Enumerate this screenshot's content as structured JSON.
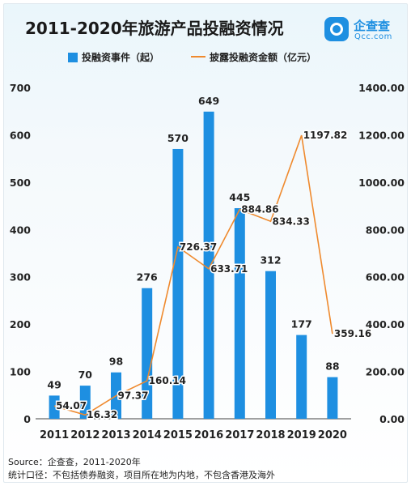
{
  "header": {
    "title": "2011-2020年旅游产品投融资情况",
    "brand_name": "企查查",
    "brand_domain": "Qcc.com"
  },
  "colors": {
    "bar": "#1e8fe1",
    "line": "#ef8a2e"
  },
  "chart_data": {
    "type": "bar",
    "categories": [
      "2011",
      "2012",
      "2013",
      "2014",
      "2015",
      "2016",
      "2017",
      "2018",
      "2019",
      "2020"
    ],
    "series": [
      {
        "name": "投融资事件（起）",
        "type": "bar",
        "axis": "left",
        "values": [
          49,
          70,
          98,
          276,
          570,
          649,
          445,
          312,
          177,
          88
        ]
      },
      {
        "name": "披露投融资金额（亿元）",
        "type": "line",
        "axis": "right",
        "values": [
          54.07,
          16.32,
          97.37,
          160.14,
          726.37,
          633.71,
          884.86,
          834.33,
          1197.82,
          359.16
        ],
        "labels": [
          "54.07",
          "16.32",
          "97.37",
          "160.14",
          "726.37",
          "633.71",
          "884.86",
          "834.33",
          "1197.82",
          "359.16"
        ]
      }
    ],
    "left_axis": {
      "ylim": [
        0,
        700
      ],
      "ticks": [
        "0",
        "100",
        "200",
        "300",
        "400",
        "500",
        "600",
        "700"
      ]
    },
    "right_axis": {
      "ylim": [
        0,
        1400
      ],
      "ticks": [
        "0.00",
        "200.00",
        "400.00",
        "600.00",
        "800.00",
        "1000.00",
        "1200.00",
        "1400.00"
      ]
    },
    "legend_position": "top",
    "grid": false
  },
  "footer": {
    "source": "Source：企查查，2011-2020年",
    "note": "统计口径：不包括债券融资，项目所在地为内地，不包含香港及海外"
  }
}
